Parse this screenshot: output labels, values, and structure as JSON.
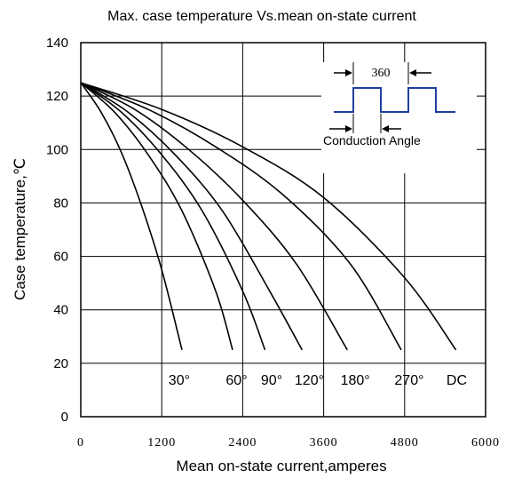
{
  "chart_data": {
    "type": "line",
    "title": "Max. case temperature Vs.mean on-state current",
    "xlabel": "Mean on-state current,amperes",
    "ylabel": "Case temperature,℃",
    "xlim": [
      0,
      6000
    ],
    "ylim": [
      0,
      140
    ],
    "x_ticks": [
      "0",
      "1200",
      "2400",
      "3600",
      "4800",
      "6000"
    ],
    "y_ticks": [
      "0",
      "20",
      "40",
      "60",
      "80",
      "100",
      "120",
      "140"
    ],
    "grid": true,
    "series": [
      {
        "name": "30°",
        "x": [
          0,
          300,
          600,
          900,
          1200,
          1500
        ],
        "y": [
          125,
          114,
          99,
          79,
          55,
          25
        ]
      },
      {
        "name": "60°",
        "x": [
          0,
          500,
          1000,
          1500,
          2000,
          2250
        ],
        "y": [
          125,
          114,
          98,
          77,
          47,
          25
        ]
      },
      {
        "name": "90°",
        "x": [
          0,
          600,
          1200,
          1800,
          2400,
          2730
        ],
        "y": [
          125,
          114,
          98,
          77,
          47,
          25
        ]
      },
      {
        "name": "120°",
        "x": [
          0,
          700,
          1400,
          2100,
          2800,
          3280
        ],
        "y": [
          125,
          114,
          98,
          77,
          47,
          25
        ]
      },
      {
        "name": "180°",
        "x": [
          0,
          800,
          1600,
          2400,
          3200,
          3950
        ],
        "y": [
          125,
          115,
          100,
          81,
          57,
          25
        ]
      },
      {
        "name": "270°",
        "x": [
          0,
          1000,
          2000,
          3000,
          4000,
          4750
        ],
        "y": [
          125,
          115,
          101,
          83,
          57,
          25
        ]
      },
      {
        "name": "DC",
        "x": [
          0,
          1200,
          2400,
          3600,
          4800,
          5560
        ],
        "y": [
          125,
          115,
          101,
          82,
          52,
          25
        ]
      }
    ],
    "curve_labels": [
      {
        "text": "30°",
        "x": 1300,
        "y": 14
      },
      {
        "text": "60°",
        "x": 2150,
        "y": 14
      },
      {
        "text": "90°",
        "x": 2670,
        "y": 14
      },
      {
        "text": "120°",
        "x": 3170,
        "y": 14
      },
      {
        "text": "180°",
        "x": 3850,
        "y": 14
      },
      {
        "text": "270°",
        "x": 4650,
        "y": 14
      },
      {
        "text": "DC",
        "x": 5420,
        "y": 14
      }
    ],
    "inset": {
      "period_label": "360",
      "angle_label": "Conduction Angle"
    }
  }
}
